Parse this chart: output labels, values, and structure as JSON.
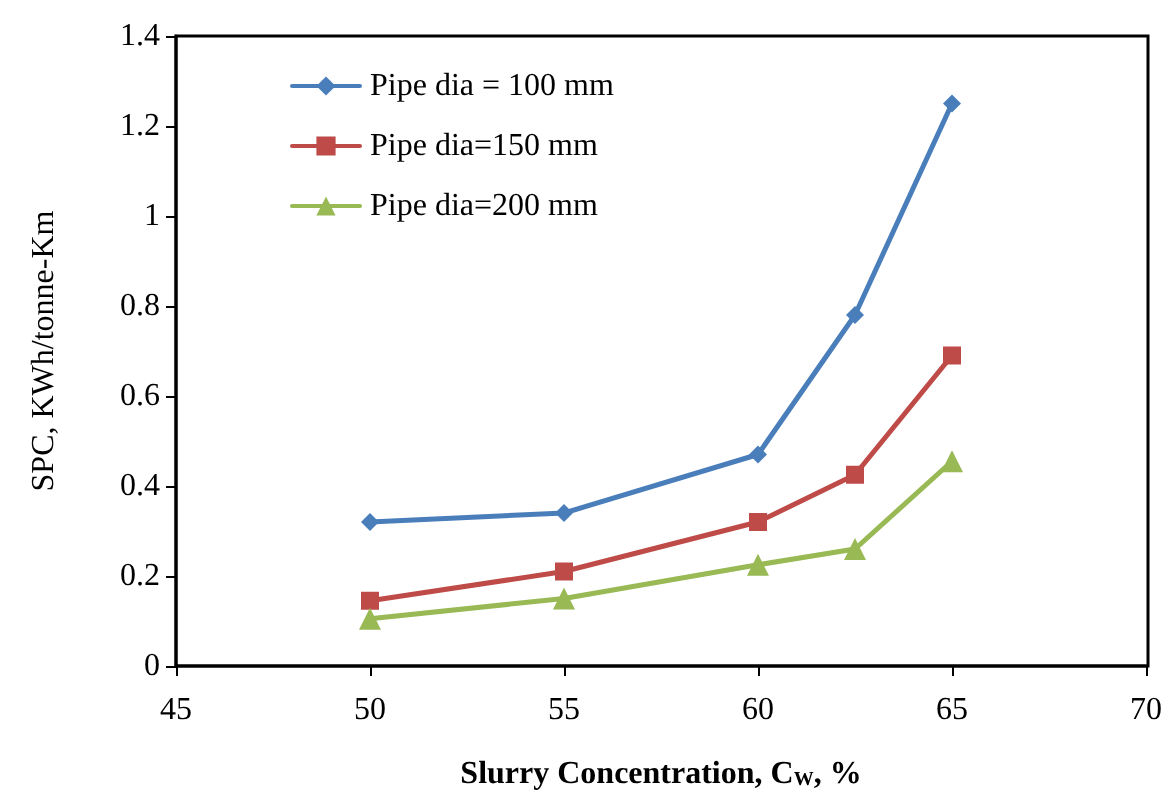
{
  "chart_data": {
    "type": "line",
    "xlabel": "Slurry Concentration, C$_{W}$, %",
    "ylabel": "SPC, KWh/tonne-Km",
    "x": [
      50,
      55,
      60,
      62.5,
      65
    ],
    "series": [
      {
        "name": "Pipe dia = 100 mm",
        "color": "#4a7ebb",
        "marker": "diamond",
        "values": [
          0.32,
          0.34,
          0.47,
          0.78,
          1.25
        ]
      },
      {
        "name": "Pipe dia=150 mm",
        "color": "#be4b48",
        "marker": "square",
        "values": [
          0.145,
          0.21,
          0.32,
          0.425,
          0.69
        ]
      },
      {
        "name": "Pipe dia=200 mm",
        "color": "#98b954",
        "marker": "triangle",
        "values": [
          0.105,
          0.15,
          0.225,
          0.26,
          0.455
        ]
      }
    ],
    "xlim": [
      45,
      70
    ],
    "xticks": [
      45,
      50,
      55,
      60,
      65,
      70
    ],
    "ylim": [
      0,
      1.4
    ],
    "yticks": [
      0,
      0.2,
      0.4,
      0.6,
      0.8,
      1,
      1.2,
      1.4
    ],
    "grid": false,
    "legend": "top left",
    "line_style": "solid"
  }
}
